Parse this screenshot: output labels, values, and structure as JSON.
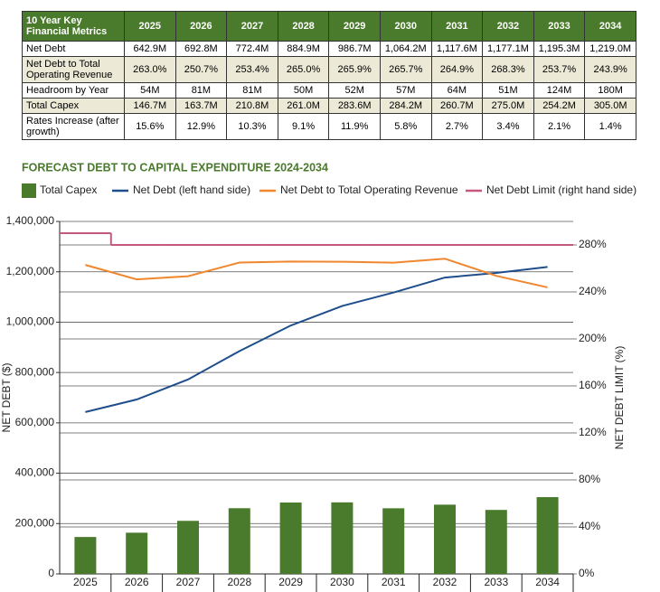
{
  "table": {
    "header": [
      "10 Year Key Financial Metrics",
      "2025",
      "2026",
      "2027",
      "2028",
      "2029",
      "2030",
      "2031",
      "2032",
      "2033",
      "2034"
    ],
    "rows": [
      [
        "Net Debt",
        "642.9M",
        "692.8M",
        "772.4M",
        "884.9M",
        "986.7M",
        "1,064.2M",
        "1,117.6M",
        "1,177.1M",
        "1,195.3M",
        "1,219.0M"
      ],
      [
        "Net Debt to Total Operating Revenue",
        "263.0%",
        "250.7%",
        "253.4%",
        "265.0%",
        "265.9%",
        "265.7%",
        "264.9%",
        "268.3%",
        "253.7%",
        "243.9%"
      ],
      [
        "Headroom by Year",
        "54M",
        "81M",
        "81M",
        "50M",
        "52M",
        "57M",
        "64M",
        "51M",
        "124M",
        "180M"
      ],
      [
        "Total Capex",
        "146.7M",
        "163.7M",
        "210.8M",
        "261.0M",
        "283.6M",
        "284.2M",
        "260.7M",
        "275.0M",
        "254.2M",
        "305.0M"
      ],
      [
        "Rates Increase (after growth)",
        "15.6%",
        "12.9%",
        "10.3%",
        "9.1%",
        "11.9%",
        "5.8%",
        "2.7%",
        "3.4%",
        "2.1%",
        "1.4%"
      ]
    ]
  },
  "chart_data": {
    "type": "combo",
    "title": "FORECAST DEBT TO CAPITAL EXPENDITURE 2024-2034",
    "y_label": "NET DEBT ($)",
    "y2_label": "NET DEBT LIMIT (%)",
    "categories": [
      "2025",
      "2026",
      "2027",
      "2028",
      "2029",
      "2030",
      "2031",
      "2032",
      "2033",
      "2034"
    ],
    "ylim": [
      0,
      1400000
    ],
    "yticks": [
      0,
      {
        "value": 200000,
        "label": "200,000"
      },
      {
        "value": 400000,
        "label": "400,000"
      },
      {
        "value": 600000,
        "label": "600,000"
      },
      {
        "value": 800000,
        "label": "800,000"
      },
      {
        "value": 1000000,
        "label": "1,000,000"
      },
      {
        "value": 1200000,
        "label": "1,200,000"
      },
      {
        "value": 1400000,
        "label": "1,400,000"
      }
    ],
    "y2lim": [
      0,
      300
    ],
    "y2ticks": [
      {
        "value": 0,
        "label": "0%"
      },
      {
        "value": 40,
        "label": "40%"
      },
      {
        "value": 80,
        "label": "80%"
      },
      {
        "value": 120,
        "label": "120%"
      },
      {
        "value": 160,
        "label": "160%"
      },
      {
        "value": 200,
        "label": "200%"
      },
      {
        "value": 240,
        "label": "240%"
      },
      {
        "value": 280,
        "label": "280%"
      }
    ],
    "grid": true,
    "series": [
      {
        "name": "Total Capex",
        "type": "bar",
        "color": "#4a7a2c",
        "values": [
          146700,
          163700,
          210800,
          261000,
          283600,
          284200,
          260700,
          275000,
          254200,
          305000
        ]
      },
      {
        "name": "Net Debt (left hand side)",
        "type": "line",
        "color": "#1f4e8c",
        "values": [
          642900,
          692800,
          772400,
          884900,
          986700,
          1064200,
          1117600,
          1177100,
          1195300,
          1219000
        ]
      },
      {
        "name": "Net Debt to Total Operating Revenue",
        "type": "line",
        "axis": "y2",
        "color": "#f0872e",
        "values": [
          263.0,
          250.7,
          253.4,
          265.0,
          265.9,
          265.7,
          264.9,
          268.3,
          253.7,
          243.9
        ]
      },
      {
        "name": "Net Debt Limit (right hand side)",
        "type": "step",
        "axis": "y2",
        "color": "#c4587e",
        "values": [
          290,
          280,
          280,
          280,
          280,
          280,
          280,
          280,
          280,
          280
        ]
      }
    ]
  }
}
